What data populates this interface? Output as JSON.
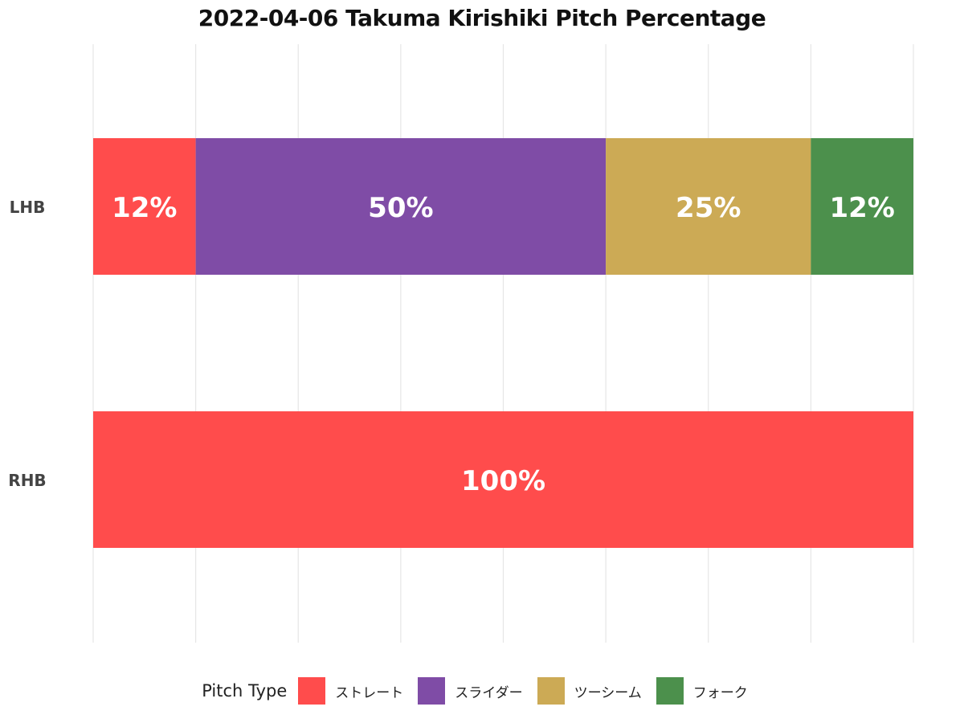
{
  "chart_data": {
    "type": "bar",
    "orientation": "horizontal",
    "stacked": true,
    "title": "2022-04-06 Takuma Kirishiki Pitch Percentage",
    "categories": [
      "LHB",
      "RHB"
    ],
    "series": [
      {
        "name": "ストレート",
        "color": "#ff4c4c",
        "values": [
          12.5,
          100
        ],
        "labels": [
          "12%",
          "100%"
        ]
      },
      {
        "name": "スライダー",
        "color": "#7f4ca6",
        "values": [
          50,
          0
        ],
        "labels": [
          "50%",
          ""
        ]
      },
      {
        "name": "ツーシーム",
        "color": "#ccaa55",
        "values": [
          25,
          0
        ],
        "labels": [
          "25%",
          ""
        ]
      },
      {
        "name": "フォーク",
        "color": "#4c904c",
        "values": [
          12.5,
          0
        ],
        "labels": [
          "12%",
          ""
        ]
      }
    ],
    "xlim": [
      0,
      100
    ],
    "grid": true,
    "legend": {
      "title": "Pitch Type",
      "position": "bottom"
    }
  }
}
